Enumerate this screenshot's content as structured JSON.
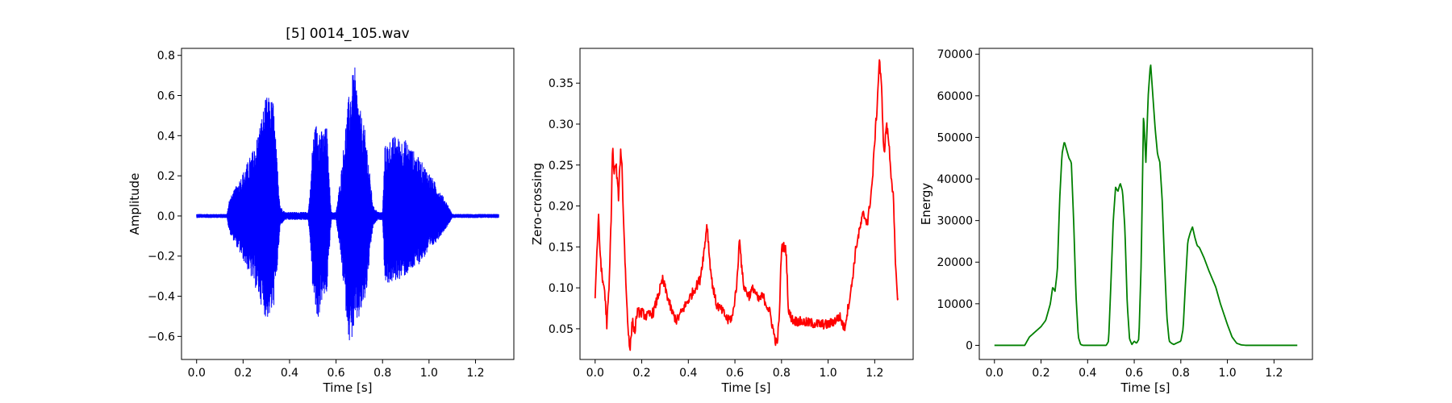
{
  "figure": {
    "background": "#ffffff"
  },
  "chart_data": [
    {
      "type": "line",
      "title": "[5] 0014_105.wav",
      "xlabel": "Time [s]",
      "ylabel": "Amplitude",
      "color": "#0000ff",
      "signal": "waveform",
      "xlim": [
        -0.065,
        1.365
      ],
      "ylim": [
        -0.715,
        0.835
      ],
      "xticks": [
        0.0,
        0.2,
        0.4,
        0.6,
        0.8,
        1.0,
        1.2
      ],
      "xtick_labels": [
        "0.0",
        "0.2",
        "0.4",
        "0.6",
        "0.8",
        "1.0",
        "1.2"
      ],
      "yticks": [
        -0.6,
        -0.4,
        -0.2,
        0.0,
        0.2,
        0.4,
        0.6,
        0.8
      ],
      "ytick_labels": [
        "−0.6",
        "−0.4",
        "−0.2",
        "0.0",
        "0.2",
        "0.4",
        "0.6",
        "0.8"
      ],
      "envelope": {
        "t": [
          0.0,
          0.13,
          0.14,
          0.2,
          0.25,
          0.28,
          0.3,
          0.33,
          0.345,
          0.36,
          0.38,
          0.48,
          0.49,
          0.5,
          0.52,
          0.54,
          0.56,
          0.57,
          0.58,
          0.6,
          0.62,
          0.64,
          0.66,
          0.68,
          0.7,
          0.73,
          0.75,
          0.76,
          0.78,
          0.8,
          0.81,
          0.83,
          0.85,
          0.9,
          0.95,
          1.0,
          1.05,
          1.08,
          1.1,
          1.3
        ],
        "top": [
          0.01,
          0.01,
          0.08,
          0.22,
          0.35,
          0.5,
          0.6,
          0.58,
          0.3,
          0.05,
          0.02,
          0.02,
          0.15,
          0.4,
          0.49,
          0.42,
          0.45,
          0.2,
          0.02,
          0.02,
          0.2,
          0.45,
          0.65,
          0.75,
          0.55,
          0.4,
          0.15,
          0.05,
          0.02,
          0.02,
          0.35,
          0.38,
          0.4,
          0.38,
          0.3,
          0.22,
          0.12,
          0.06,
          0.01,
          0.01
        ],
        "bottom": [
          -0.01,
          -0.01,
          -0.08,
          -0.22,
          -0.35,
          -0.45,
          -0.52,
          -0.48,
          -0.3,
          -0.05,
          -0.02,
          -0.02,
          -0.15,
          -0.38,
          -0.54,
          -0.42,
          -0.4,
          -0.2,
          -0.02,
          -0.02,
          -0.2,
          -0.45,
          -0.66,
          -0.55,
          -0.52,
          -0.4,
          -0.15,
          -0.05,
          -0.02,
          -0.02,
          -0.33,
          -0.34,
          -0.33,
          -0.3,
          -0.25,
          -0.18,
          -0.1,
          -0.05,
          -0.01,
          -0.01
        ]
      }
    },
    {
      "type": "line",
      "title": "",
      "xlabel": "Time [s]",
      "ylabel": "Zero-crossing",
      "color": "#ff0000",
      "signal": "zcr",
      "xlim": [
        -0.065,
        1.365
      ],
      "ylim": [
        0.0125,
        0.3925
      ],
      "xticks": [
        0.0,
        0.2,
        0.4,
        0.6,
        0.8,
        1.0,
        1.2
      ],
      "xtick_labels": [
        "0.0",
        "0.2",
        "0.4",
        "0.6",
        "0.8",
        "1.0",
        "1.2"
      ],
      "yticks": [
        0.05,
        0.1,
        0.15,
        0.2,
        0.25,
        0.3,
        0.35
      ],
      "ytick_labels": [
        "0.05",
        "0.10",
        "0.15",
        "0.20",
        "0.25",
        "0.30",
        "0.35"
      ],
      "t": [
        0.0,
        0.01,
        0.015,
        0.02,
        0.03,
        0.04,
        0.05,
        0.06,
        0.07,
        0.075,
        0.08,
        0.09,
        0.1,
        0.11,
        0.115,
        0.12,
        0.13,
        0.14,
        0.15,
        0.16,
        0.17,
        0.18,
        0.2,
        0.22,
        0.25,
        0.27,
        0.29,
        0.31,
        0.33,
        0.35,
        0.37,
        0.39,
        0.41,
        0.43,
        0.45,
        0.47,
        0.48,
        0.49,
        0.5,
        0.52,
        0.55,
        0.57,
        0.59,
        0.61,
        0.62,
        0.63,
        0.64,
        0.66,
        0.68,
        0.7,
        0.72,
        0.75,
        0.77,
        0.78,
        0.79,
        0.8,
        0.81,
        0.82,
        0.83,
        0.85,
        0.9,
        0.95,
        1.0,
        1.03,
        1.05,
        1.07,
        1.1,
        1.12,
        1.15,
        1.17,
        1.19,
        1.2,
        1.21,
        1.22,
        1.23,
        1.24,
        1.25,
        1.26,
        1.27,
        1.28,
        1.29,
        1.3
      ],
      "y": [
        0.09,
        0.16,
        0.185,
        0.15,
        0.11,
        0.1,
        0.055,
        0.1,
        0.2,
        0.28,
        0.24,
        0.25,
        0.21,
        0.27,
        0.25,
        0.2,
        0.12,
        0.055,
        0.025,
        0.06,
        0.045,
        0.07,
        0.07,
        0.065,
        0.07,
        0.09,
        0.11,
        0.09,
        0.07,
        0.06,
        0.07,
        0.08,
        0.09,
        0.1,
        0.11,
        0.15,
        0.18,
        0.14,
        0.11,
        0.08,
        0.07,
        0.06,
        0.065,
        0.11,
        0.165,
        0.12,
        0.1,
        0.09,
        0.1,
        0.085,
        0.09,
        0.07,
        0.04,
        0.03,
        0.06,
        0.15,
        0.15,
        0.145,
        0.07,
        0.06,
        0.058,
        0.056,
        0.055,
        0.06,
        0.065,
        0.05,
        0.1,
        0.15,
        0.19,
        0.18,
        0.23,
        0.28,
        0.32,
        0.38,
        0.34,
        0.26,
        0.3,
        0.28,
        0.24,
        0.21,
        0.12,
        0.085
      ]
    },
    {
      "type": "line",
      "title": "",
      "xlabel": "Time [s]",
      "ylabel": "Energy",
      "color": "#008000",
      "signal": "energy",
      "xlim": [
        -0.065,
        1.365
      ],
      "ylim": [
        -3400,
        71400
      ],
      "xticks": [
        0.0,
        0.2,
        0.4,
        0.6,
        0.8,
        1.0,
        1.2
      ],
      "xtick_labels": [
        "0.0",
        "0.2",
        "0.4",
        "0.6",
        "0.8",
        "1.0",
        "1.2"
      ],
      "yticks": [
        0,
        10000,
        20000,
        30000,
        40000,
        50000,
        60000,
        70000
      ],
      "ytick_labels": [
        "0",
        "10000",
        "20000",
        "30000",
        "40000",
        "50000",
        "60000",
        "70000"
      ],
      "t": [
        0.0,
        0.13,
        0.15,
        0.17,
        0.2,
        0.22,
        0.24,
        0.25,
        0.26,
        0.27,
        0.28,
        0.29,
        0.3,
        0.31,
        0.32,
        0.33,
        0.34,
        0.35,
        0.36,
        0.37,
        0.38,
        0.4,
        0.48,
        0.49,
        0.5,
        0.51,
        0.52,
        0.53,
        0.54,
        0.55,
        0.56,
        0.57,
        0.58,
        0.59,
        0.6,
        0.61,
        0.62,
        0.63,
        0.64,
        0.65,
        0.66,
        0.67,
        0.68,
        0.69,
        0.7,
        0.71,
        0.72,
        0.73,
        0.74,
        0.75,
        0.76,
        0.77,
        0.78,
        0.8,
        0.81,
        0.82,
        0.83,
        0.84,
        0.85,
        0.86,
        0.87,
        0.88,
        0.9,
        0.92,
        0.95,
        0.97,
        1.0,
        1.02,
        1.04,
        1.06,
        1.08,
        1.3
      ],
      "y": [
        0,
        0,
        2000,
        3000,
        4500,
        6000,
        10000,
        14000,
        13000,
        18000,
        35000,
        46000,
        49000,
        47000,
        45000,
        44000,
        30000,
        12000,
        2000,
        200,
        0,
        0,
        0,
        1000,
        15000,
        30000,
        38000,
        37000,
        39000,
        37000,
        28000,
        10000,
        1500,
        200,
        1000,
        500,
        1500,
        20000,
        56000,
        44000,
        60000,
        68000,
        60000,
        52000,
        46000,
        44000,
        35000,
        20000,
        7000,
        1000,
        500,
        200,
        500,
        1000,
        4000,
        15000,
        25000,
        27000,
        28500,
        26000,
        24000,
        23500,
        21000,
        18000,
        14000,
        10000,
        5000,
        2000,
        500,
        100,
        0,
        0
      ]
    }
  ]
}
